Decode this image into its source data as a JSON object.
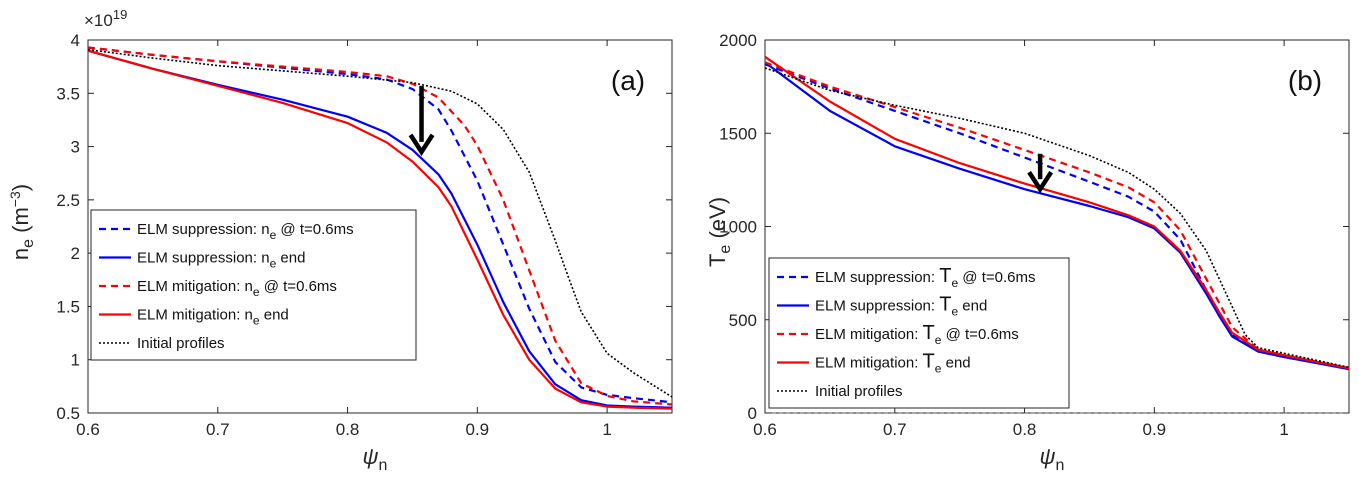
{
  "chart_data": [
    {
      "type": "line",
      "panel_label": "(a)",
      "ylabel_main": "n",
      "ylabel_sub": "e",
      "ylabel_unit": " (m",
      "ylabel_unit_sup": "−3",
      "ylabel_unit_end": ")",
      "xlabel_main": "ψ",
      "xlabel_sub": "n",
      "exponent_label": "×10",
      "exponent_value": "19",
      "xlim": [
        0.6,
        1.05
      ],
      "ylim": [
        0.5,
        4.0
      ],
      "xticks": [
        0.6,
        0.7,
        0.8,
        0.9,
        1.0
      ],
      "xtick_labels": [
        "0.6",
        "0.7",
        "0.8",
        "0.9",
        "1"
      ],
      "yticks": [
        0.5,
        1.0,
        1.5,
        2.0,
        2.5,
        3.0,
        3.5,
        4.0
      ],
      "ytick_labels": [
        "0.5",
        "1",
        "1.5",
        "2",
        "2.5",
        "3",
        "3.5",
        "4"
      ],
      "arrow": {
        "x": 0.857,
        "y_from": 3.57,
        "y_to": 2.95
      },
      "legend": {
        "placement": "lower-left",
        "entries": [
          {
            "pre": "ELM suppression: n",
            "sub": "e",
            "post": " @ t=0.6ms"
          },
          {
            "pre": "ELM suppression: n",
            "sub": "e",
            "post": " end"
          },
          {
            "pre": "ELM mitigation: n",
            "sub": "e",
            "post": " @ t=0.6ms"
          },
          {
            "pre": "ELM mitigation: n",
            "sub": "e",
            "post": " end"
          },
          {
            "pre": "Initial profiles",
            "sub": "",
            "post": ""
          }
        ]
      },
      "series": [
        {
          "color": "#0000ff",
          "dash": "dashed",
          "x": [
            0.6,
            0.65,
            0.7,
            0.75,
            0.8,
            0.83,
            0.85,
            0.87,
            0.88,
            0.9,
            0.92,
            0.94,
            0.96,
            0.98,
            1.0,
            1.02,
            1.05
          ],
          "y": [
            3.93,
            3.86,
            3.8,
            3.74,
            3.68,
            3.63,
            3.54,
            3.35,
            3.15,
            2.68,
            2.08,
            1.48,
            0.98,
            0.74,
            0.67,
            0.64,
            0.6
          ]
        },
        {
          "color": "#0000ff",
          "dash": "solid",
          "x": [
            0.6,
            0.65,
            0.7,
            0.75,
            0.8,
            0.83,
            0.85,
            0.87,
            0.88,
            0.9,
            0.92,
            0.94,
            0.96,
            0.98,
            1.0,
            1.02,
            1.05
          ],
          "y": [
            3.9,
            3.73,
            3.58,
            3.44,
            3.28,
            3.13,
            2.97,
            2.74,
            2.56,
            2.08,
            1.54,
            1.08,
            0.77,
            0.62,
            0.57,
            0.56,
            0.55
          ]
        },
        {
          "color": "#ff0000",
          "dash": "dashed",
          "x": [
            0.6,
            0.65,
            0.7,
            0.75,
            0.8,
            0.83,
            0.85,
            0.87,
            0.89,
            0.9,
            0.92,
            0.94,
            0.96,
            0.98,
            1.0,
            1.02,
            1.05
          ],
          "y": [
            3.93,
            3.86,
            3.8,
            3.75,
            3.7,
            3.66,
            3.59,
            3.46,
            3.2,
            3.01,
            2.5,
            1.84,
            1.18,
            0.78,
            0.66,
            0.61,
            0.58
          ]
        },
        {
          "color": "#ff0000",
          "dash": "solid",
          "x": [
            0.6,
            0.65,
            0.7,
            0.75,
            0.8,
            0.83,
            0.85,
            0.87,
            0.88,
            0.9,
            0.92,
            0.94,
            0.96,
            0.98,
            1.0,
            1.02,
            1.05
          ],
          "y": [
            3.9,
            3.73,
            3.57,
            3.41,
            3.22,
            3.04,
            2.86,
            2.62,
            2.44,
            1.94,
            1.42,
            1.0,
            0.73,
            0.6,
            0.56,
            0.55,
            0.54
          ]
        },
        {
          "color": "#000000",
          "dash": "dotted",
          "x": [
            0.6,
            0.65,
            0.7,
            0.75,
            0.8,
            0.85,
            0.88,
            0.9,
            0.92,
            0.94,
            0.96,
            0.97,
            0.98,
            1.0,
            1.02,
            1.05
          ],
          "y": [
            3.91,
            3.83,
            3.76,
            3.71,
            3.66,
            3.6,
            3.52,
            3.4,
            3.16,
            2.76,
            2.12,
            1.78,
            1.45,
            1.06,
            0.88,
            0.65
          ]
        }
      ]
    },
    {
      "type": "line",
      "panel_label": "(b)",
      "ylabel_main": "T",
      "ylabel_sub": "e",
      "ylabel_unit": " (eV)",
      "xlabel_main": "ψ",
      "xlabel_sub": "n",
      "xlim": [
        0.6,
        1.05
      ],
      "ylim": [
        0,
        2000
      ],
      "xticks": [
        0.6,
        0.7,
        0.8,
        0.9,
        1.0
      ],
      "xtick_labels": [
        "0.6",
        "0.7",
        "0.8",
        "0.9",
        "1"
      ],
      "yticks": [
        0,
        500,
        1000,
        1500,
        2000
      ],
      "ytick_labels": [
        "0",
        "500",
        "1000",
        "1500",
        "2000"
      ],
      "zero_line": 0,
      "arrow": {
        "x": 0.812,
        "y_from": 1390,
        "y_to": 1200
      },
      "legend": {
        "placement": "lower-left",
        "entries": [
          {
            "pre": "ELM suppression: ",
            "big": "T",
            "sub": "e",
            "post": " @ t=0.6ms"
          },
          {
            "pre": "ELM suppression: ",
            "big": "T",
            "sub": "e",
            "post": " end"
          },
          {
            "pre": "ELM mitigation: ",
            "big": "T",
            "sub": "e",
            "post": " @ t=0.6ms"
          },
          {
            "pre": "ELM mitigation: ",
            "big": "T",
            "sub": "e",
            "post": " end"
          },
          {
            "pre": "Initial profiles",
            "big": "",
            "sub": "",
            "post": ""
          }
        ]
      },
      "series": [
        {
          "color": "#0000ff",
          "dash": "dashed",
          "x": [
            0.6,
            0.65,
            0.7,
            0.75,
            0.8,
            0.85,
            0.88,
            0.9,
            0.92,
            0.94,
            0.96,
            0.98,
            1.0,
            1.05
          ],
          "y": [
            1870,
            1740,
            1620,
            1500,
            1370,
            1240,
            1160,
            1080,
            930,
            660,
            420,
            330,
            300,
            240
          ]
        },
        {
          "color": "#0000ff",
          "dash": "solid",
          "x": [
            0.6,
            0.65,
            0.7,
            0.75,
            0.8,
            0.85,
            0.88,
            0.9,
            0.92,
            0.94,
            0.95,
            0.96,
            0.98,
            1.0,
            1.05
          ],
          "y": [
            1880,
            1620,
            1430,
            1310,
            1200,
            1110,
            1050,
            990,
            860,
            640,
            520,
            410,
            330,
            300,
            235
          ]
        },
        {
          "color": "#ff0000",
          "dash": "dashed",
          "x": [
            0.6,
            0.65,
            0.7,
            0.75,
            0.8,
            0.85,
            0.88,
            0.9,
            0.92,
            0.94,
            0.96,
            0.98,
            1.0,
            1.05
          ],
          "y": [
            1880,
            1750,
            1640,
            1530,
            1410,
            1290,
            1210,
            1130,
            980,
            720,
            460,
            340,
            310,
            240
          ]
        },
        {
          "color": "#ff0000",
          "dash": "solid",
          "x": [
            0.6,
            0.65,
            0.7,
            0.75,
            0.8,
            0.85,
            0.88,
            0.9,
            0.92,
            0.94,
            0.95,
            0.96,
            0.98,
            1.0,
            1.05
          ],
          "y": [
            1910,
            1670,
            1470,
            1340,
            1230,
            1130,
            1060,
            1000,
            870,
            660,
            540,
            430,
            340,
            310,
            240
          ]
        },
        {
          "color": "#000000",
          "dash": "dotted",
          "x": [
            0.6,
            0.65,
            0.7,
            0.75,
            0.8,
            0.85,
            0.88,
            0.9,
            0.92,
            0.94,
            0.96,
            0.97,
            0.98,
            1.0,
            1.05
          ],
          "y": [
            1850,
            1730,
            1650,
            1580,
            1500,
            1380,
            1290,
            1200,
            1070,
            870,
            570,
            420,
            350,
            320,
            245
          ]
        }
      ]
    }
  ]
}
